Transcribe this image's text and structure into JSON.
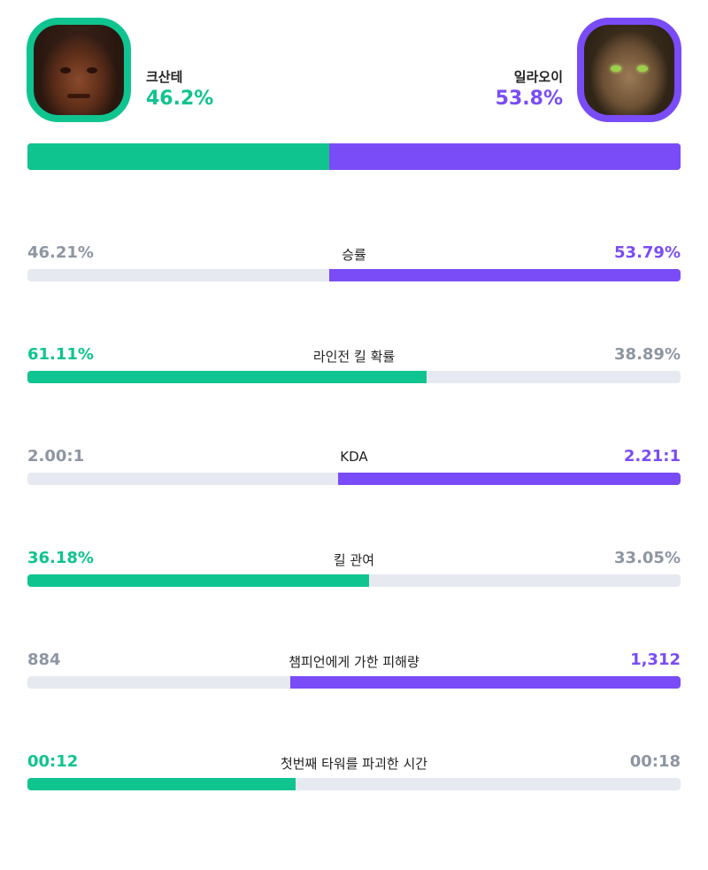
{
  "colors": {
    "left_accent": "#0fc48f",
    "right_accent": "#7a4cf7",
    "track": "#e6e9ef",
    "muted_text": "#8e96a3"
  },
  "left_champion": {
    "name": "크산테",
    "win_rate_text": "46.2%",
    "win_rate": 46.2,
    "avatar_icon": "champion-portrait-ksante"
  },
  "right_champion": {
    "name": "일라오이",
    "win_rate_text": "53.8%",
    "win_rate": 53.8,
    "avatar_icon": "champion-portrait-illaoi"
  },
  "stats": [
    {
      "label": "승률",
      "left": "46.21%",
      "right": "53.79%",
      "winner": "right",
      "fill_fraction": 0.5379
    },
    {
      "label": "라인전 킬 확률",
      "left": "61.11%",
      "right": "38.89%",
      "winner": "left",
      "fill_fraction": 0.6111
    },
    {
      "label": "KDA",
      "left": "2.00:1",
      "right": "2.21:1",
      "winner": "right",
      "fill_fraction": 0.5249
    },
    {
      "label": "킬 관여",
      "left": "36.18%",
      "right": "33.05%",
      "winner": "left",
      "fill_fraction": 0.5225
    },
    {
      "label": "챔피언에게 가한 피해량",
      "left": "884",
      "right": "1,312",
      "winner": "right",
      "fill_fraction": 0.5974
    },
    {
      "label": "첫번째 타워를 파괴한 시간",
      "left": "00:12",
      "right": "00:18",
      "winner": "left",
      "fill_fraction": 0.4106
    }
  ]
}
